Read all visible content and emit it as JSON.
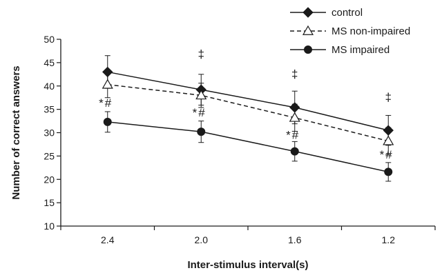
{
  "chart_data": {
    "type": "line",
    "title": "",
    "xlabel": "Inter-stimulus interval(s)",
    "ylabel": "Number of correct answers",
    "ylim": [
      10,
      50
    ],
    "yticks": [
      10,
      15,
      20,
      25,
      30,
      35,
      40,
      45,
      50
    ],
    "categories": [
      "2.4",
      "2.0",
      "1.6",
      "1.2"
    ],
    "grid": false,
    "legend_position": "top-right",
    "series": [
      {
        "name": "control",
        "marker": "diamond",
        "line_style": "solid",
        "values": [
          43,
          39.2,
          35.4,
          30.5
        ],
        "errors": [
          3.5,
          3.3,
          3.5,
          3.2
        ]
      },
      {
        "name": "MS non-impaired",
        "marker": "open-triangle",
        "line_style": "dashed",
        "values": [
          40.3,
          38,
          33.2,
          28.2
        ],
        "errors": [
          2.8,
          2.6,
          2.9,
          2.9
        ]
      },
      {
        "name": "MS impaired",
        "marker": "circle",
        "line_style": "solid",
        "values": [
          32.3,
          30.2,
          26,
          21.6
        ],
        "errors": [
          2.2,
          2.3,
          2.1,
          2.0
        ]
      }
    ],
    "annotations": [
      {
        "category_index": 0,
        "text": "*",
        "y": 35.5
      },
      {
        "category_index": 0,
        "text": "#",
        "y": 35.5
      },
      {
        "category_index": 1,
        "text": "‡",
        "y": 46
      },
      {
        "category_index": 1,
        "text": "*",
        "y": 33.5
      },
      {
        "category_index": 1,
        "text": "#",
        "y": 33.5
      },
      {
        "category_index": 2,
        "text": "‡",
        "y": 41.7
      },
      {
        "category_index": 2,
        "text": "*",
        "y": 28.7
      },
      {
        "category_index": 2,
        "text": "#",
        "y": 28.7
      },
      {
        "category_index": 3,
        "text": "‡",
        "y": 36.8
      },
      {
        "category_index": 3,
        "text": "*",
        "y": 24.5
      },
      {
        "category_index": 3,
        "text": "#",
        "y": 24.5
      }
    ]
  }
}
